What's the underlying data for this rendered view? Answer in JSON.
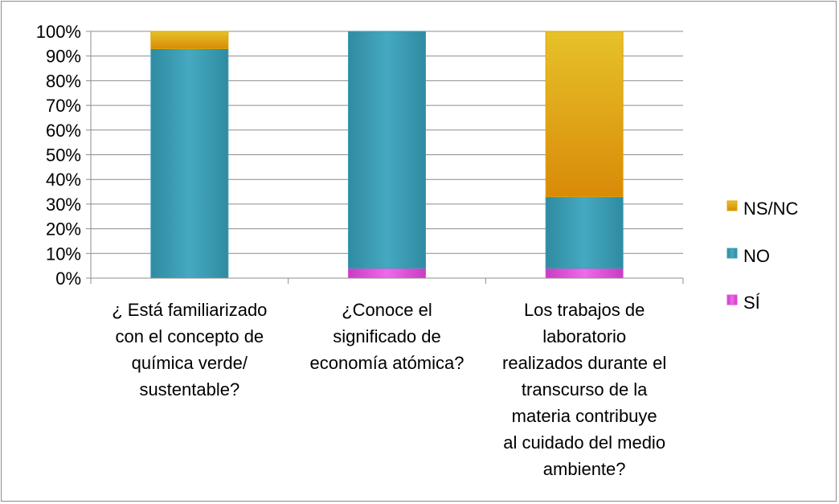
{
  "chart_data": {
    "type": "bar",
    "stacked": true,
    "percent": true,
    "title": "",
    "xlabel": "",
    "ylabel": "",
    "ylim": [
      0,
      100
    ],
    "grid": true,
    "legend_position": "right",
    "y_ticks": [
      "0%",
      "10%",
      "20%",
      "30%",
      "40%",
      "50%",
      "60%",
      "70%",
      "80%",
      "90%",
      "100%"
    ],
    "categories": [
      "¿ Está familiarizado con el concepto de química verde/ sustentable?",
      "¿Conoce el significado de economía atómica?",
      "Los trabajos de laboratorio realizados durante el transcurso de la materia contribuye al cuidado del medio ambiente?"
    ],
    "category_lines": [
      [
        "¿ Está familiarizado",
        "con el concepto de",
        "química verde/",
        "sustentable?"
      ],
      [
        "¿Conoce el",
        "significado de",
        "economía atómica?"
      ],
      [
        "Los trabajos de",
        "laboratorio",
        "realizados durante el",
        "transcurso de la",
        "materia contribuye",
        "al cuidado del medio",
        "ambiente?"
      ]
    ],
    "series": [
      {
        "name": "SÍ",
        "values": [
          0,
          4,
          4
        ],
        "color": "#e24fdc"
      },
      {
        "name": "NO",
        "values": [
          93,
          96,
          29
        ],
        "color": "#3a9cb3"
      },
      {
        "name": "NS/NC",
        "values": [
          7,
          0,
          67
        ],
        "color": "#e0a200"
      }
    ],
    "legend_order": [
      "NS/NC",
      "NO",
      "SÍ"
    ]
  }
}
